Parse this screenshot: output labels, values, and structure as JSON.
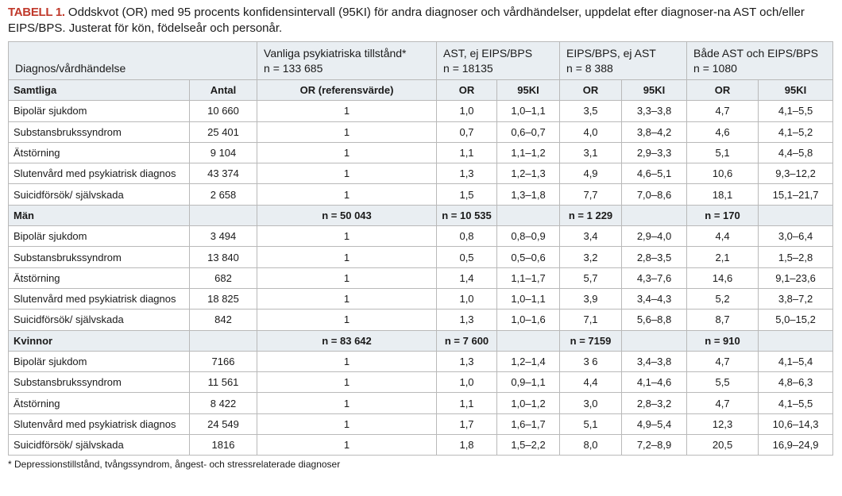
{
  "caption": {
    "label": "TABELL 1.",
    "text": " Oddskvot (OR) med 95 procents konfidensintervall (95KI) för andra diagnoser och vårdhändelser, uppdelat efter diagnoser-na AST och/eller EIPS/BPS. Justerat för kön, födelseår och personår."
  },
  "header": {
    "col1": "Diagnos/vårdhändelse",
    "col_vanliga": "Vanliga psykiatriska tillstånd*",
    "col_vanliga_n": "n = 133 685",
    "col_ast": "AST, ej EIPS/BPS",
    "col_ast_n": "n = 18135",
    "col_eips": "EIPS/BPS, ej AST",
    "col_eips_n": "n = 8 388",
    "col_bada": "Både AST och EIPS/BPS",
    "col_bada_n": "n = 1080"
  },
  "subheader": {
    "antal": "Antal",
    "or_ref": "OR (referensvärde)",
    "or": "OR",
    "ki": "95KI"
  },
  "groups": [
    {
      "name": "Samtliga",
      "n_vanliga": "",
      "n_ast": "",
      "n_eips": "",
      "n_bada": "",
      "rows": [
        {
          "label": "Bipolär sjukdom",
          "antal": "10 660",
          "ref": "1",
          "ast_or": "1,0",
          "ast_ki": "1,0–1,1",
          "eips_or": "3,5",
          "eips_ki": "3,3–3,8",
          "bada_or": "4,7",
          "bada_ki": "4,1–5,5"
        },
        {
          "label": "Substansbrukssyndrom",
          "antal": "25 401",
          "ref": "1",
          "ast_or": "0,7",
          "ast_ki": "0,6–0,7",
          "eips_or": "4,0",
          "eips_ki": "3,8–4,2",
          "bada_or": "4,6",
          "bada_ki": "4,1–5,2"
        },
        {
          "label": "Ätstörning",
          "antal": "9 104",
          "ref": "1",
          "ast_or": "1,1",
          "ast_ki": "1,1–1,2",
          "eips_or": "3,1",
          "eips_ki": "2,9–3,3",
          "bada_or": "5,1",
          "bada_ki": "4,4–5,8"
        },
        {
          "label": "Slutenvård med psykiatrisk diagnos",
          "antal": "43 374",
          "ref": "1",
          "ast_or": "1,3",
          "ast_ki": "1,2–1,3",
          "eips_or": "4,9",
          "eips_ki": "4,6–5,1",
          "bada_or": "10,6",
          "bada_ki": "9,3–12,2"
        },
        {
          "label": "Suicidförsök/ självskada",
          "antal": "2 658",
          "ref": "1",
          "ast_or": "1,5",
          "ast_ki": "1,3–1,8",
          "eips_or": "7,7",
          "eips_ki": "7,0–8,6",
          "bada_or": "18,1",
          "bada_ki": "15,1–21,7"
        }
      ]
    },
    {
      "name": "Män",
      "n_vanliga": "n = 50 043",
      "n_ast": "n = 10 535",
      "n_eips": "n = 1 229",
      "n_bada": "n = 170",
      "rows": [
        {
          "label": "Bipolär sjukdom",
          "antal": "3 494",
          "ref": "1",
          "ast_or": "0,8",
          "ast_ki": "0,8–0,9",
          "eips_or": "3,4",
          "eips_ki": "2,9–4,0",
          "bada_or": "4,4",
          "bada_ki": "3,0–6,4"
        },
        {
          "label": "Substansbrukssyndrom",
          "antal": "13 840",
          "ref": "1",
          "ast_or": "0,5",
          "ast_ki": "0,5–0,6",
          "eips_or": "3,2",
          "eips_ki": "2,8–3,5",
          "bada_or": "2,1",
          "bada_ki": "1,5–2,8"
        },
        {
          "label": "Ätstörning",
          "antal": "682",
          "ref": "1",
          "ast_or": "1,4",
          "ast_ki": "1,1–1,7",
          "eips_or": "5,7",
          "eips_ki": "4,3–7,6",
          "bada_or": "14,6",
          "bada_ki": "9,1–23,6"
        },
        {
          "label": "Slutenvård med psykiatrisk diagnos",
          "antal": "18 825",
          "ref": "1",
          "ast_or": "1,0",
          "ast_ki": "1,0–1,1",
          "eips_or": "3,9",
          "eips_ki": "3,4–4,3",
          "bada_or": "5,2",
          "bada_ki": "3,8–7,2"
        },
        {
          "label": "Suicidförsök/ självskada",
          "antal": "842",
          "ref": "1",
          "ast_or": "1,3",
          "ast_ki": "1,0–1,6",
          "eips_or": "7,1",
          "eips_ki": "5,6–8,8",
          "bada_or": "8,7",
          "bada_ki": "5,0–15,2"
        }
      ]
    },
    {
      "name": "Kvinnor",
      "n_vanliga": "n = 83 642",
      "n_ast": "n = 7 600",
      "n_eips": "n = 7159",
      "n_bada": "n = 910",
      "rows": [
        {
          "label": "Bipolär sjukdom",
          "antal": "7166",
          "ref": "1",
          "ast_or": "1,3",
          "ast_ki": "1,2–1,4",
          "eips_or": "3 6",
          "eips_ki": "3,4–3,8",
          "bada_or": "4,7",
          "bada_ki": "4,1–5,4"
        },
        {
          "label": "Substansbrukssyndrom",
          "antal": "11 561",
          "ref": "1",
          "ast_or": "1,0",
          "ast_ki": "0,9–1,1",
          "eips_or": "4,4",
          "eips_ki": "4,1–4,6",
          "bada_or": "5,5",
          "bada_ki": "4,8–6,3"
        },
        {
          "label": "Ätstörning",
          "antal": "8 422",
          "ref": "1",
          "ast_or": "1,1",
          "ast_ki": "1,0–1,2",
          "eips_or": "3,0",
          "eips_ki": "2,8–3,2",
          "bada_or": "4,7",
          "bada_ki": "4,1–5,5"
        },
        {
          "label": "Slutenvård med psykiatrisk diagnos",
          "antal": "24 549",
          "ref": "1",
          "ast_or": "1,7",
          "ast_ki": "1,6–1,7",
          "eips_or": "5,1",
          "eips_ki": "4,9–5,4",
          "bada_or": "12,3",
          "bada_ki": "10,6–14,3"
        },
        {
          "label": "Suicidförsök/ självskada",
          "antal": "1816",
          "ref": "1",
          "ast_or": "1,8",
          "ast_ki": "1,5–2,2",
          "eips_or": "8,0",
          "eips_ki": "7,2–8,9",
          "bada_or": "20,5",
          "bada_ki": "16,9–24,9"
        }
      ]
    }
  ],
  "footnote": "* Depressionstillstånd, tvångssyndrom, ångest- och stressrelaterade diagnoser",
  "colors": {
    "caption_label": "#c0392b",
    "header_bg": "#e9eef2",
    "border": "#b9b9b9"
  }
}
